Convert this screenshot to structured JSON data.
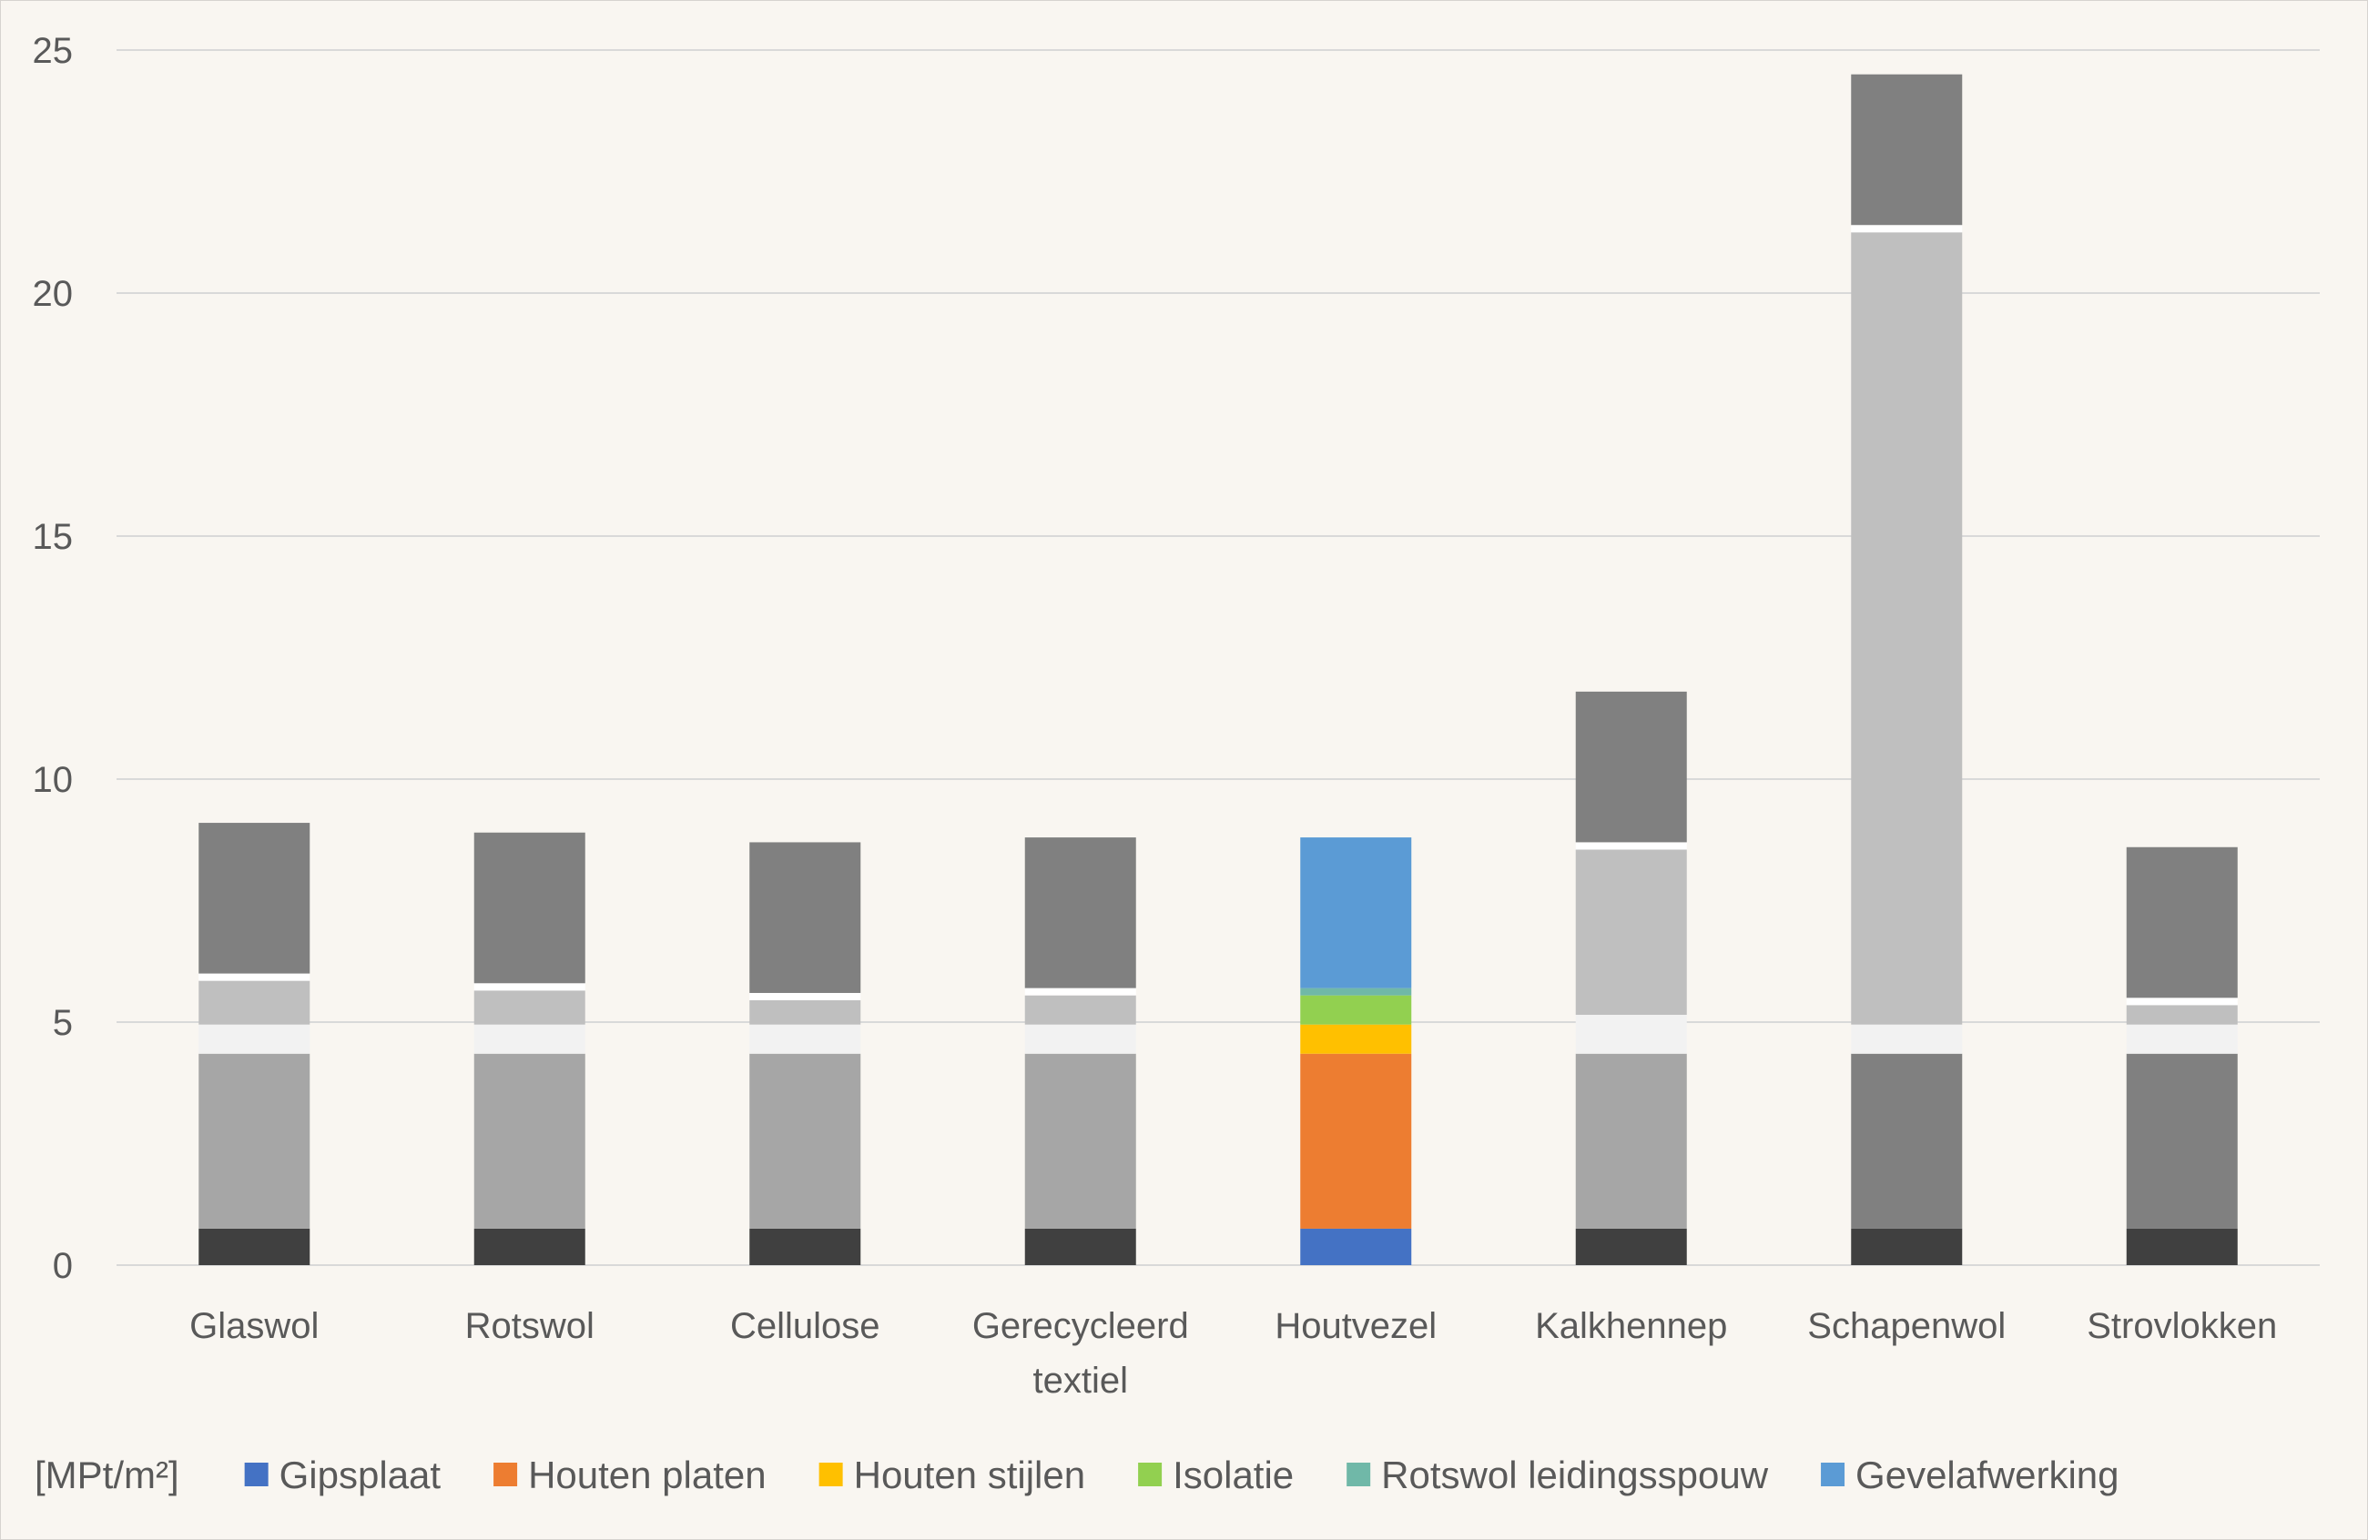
{
  "chart_data": {
    "type": "bar",
    "stacked": true,
    "title": "",
    "xlabel": "",
    "ylabel": "",
    "ylim": [
      0,
      25
    ],
    "yticks": [
      0,
      5,
      10,
      15,
      20,
      25
    ],
    "grid": true,
    "legend_position": "bottom",
    "unit_label": "[MPt/m²]",
    "categories": [
      [
        "Glaswol"
      ],
      [
        "Rotswol"
      ],
      [
        "Cellulose"
      ],
      [
        "Gerecycleerd",
        "textiel"
      ],
      [
        "Houtvezel"
      ],
      [
        "Kalkhennep"
      ],
      [
        "Schapenwol"
      ],
      [
        "Strovlokken"
      ]
    ],
    "series": [
      {
        "name": "Gipsplaat",
        "color": "#4472c4",
        "values": [
          0.75,
          0.75,
          0.75,
          0.75,
          0.75,
          0.75,
          0.75,
          0.75
        ]
      },
      {
        "name": "Houten platen",
        "color": "#ed7d31",
        "values": [
          3.6,
          3.6,
          3.6,
          3.6,
          3.6,
          3.6,
          3.6,
          3.6
        ]
      },
      {
        "name": "Houten stijlen",
        "color": "#ffc000",
        "values": [
          0.6,
          0.6,
          0.6,
          0.6,
          0.6,
          0.8,
          0.6,
          0.6
        ]
      },
      {
        "name": "Isolatie",
        "color": "#92d050",
        "values": [
          0.9,
          0.7,
          0.5,
          0.6,
          0.6,
          3.4,
          16.3,
          0.4
        ]
      },
      {
        "name": "Rotswol leidingsspouw",
        "color": "#70b8a8",
        "values": [
          0.15,
          0.15,
          0.15,
          0.15,
          0.15,
          0.15,
          0.15,
          0.15
        ]
      },
      {
        "name": "Gevelafwerking",
        "color": "#5b9bd5",
        "values": [
          3.1,
          3.1,
          3.1,
          3.1,
          3.1,
          3.1,
          3.1,
          3.1
        ]
      }
    ],
    "bar_fill_colors": [
      [
        "#404040",
        "#a6a6a6",
        "#f2f2f2",
        "#bfbfbf",
        "#ffffff",
        "#808080"
      ],
      [
        "#404040",
        "#a6a6a6",
        "#f2f2f2",
        "#bfbfbf",
        "#ffffff",
        "#808080"
      ],
      [
        "#404040",
        "#a6a6a6",
        "#f2f2f2",
        "#bfbfbf",
        "#ffffff",
        "#808080"
      ],
      [
        "#404040",
        "#a6a6a6",
        "#f2f2f2",
        "#bfbfbf",
        "#ffffff",
        "#808080"
      ],
      [
        "#4472c4",
        "#ed7d31",
        "#ffc000",
        "#92d050",
        "#70b8a8",
        "#5b9bd5"
      ],
      [
        "#404040",
        "#a6a6a6",
        "#f2f2f2",
        "#bfbfbf",
        "#ffffff",
        "#808080"
      ],
      [
        "#404040",
        "#808080",
        "#f2f2f2",
        "#bfbfbf",
        "#ffffff",
        "#808080"
      ],
      [
        "#404040",
        "#808080",
        "#f2f2f2",
        "#bfbfbf",
        "#ffffff",
        "#808080"
      ]
    ]
  }
}
